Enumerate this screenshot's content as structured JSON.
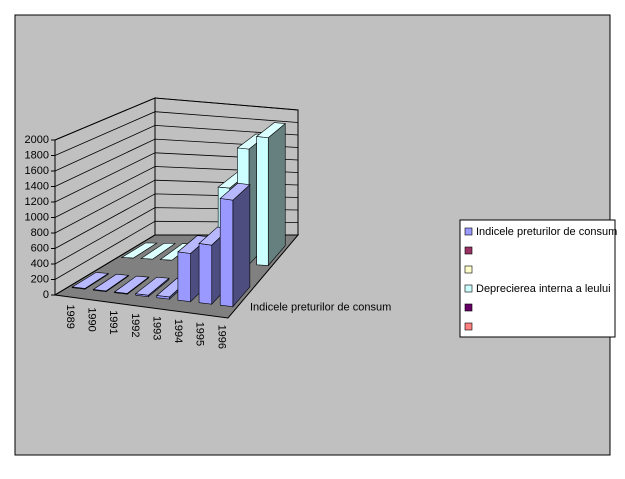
{
  "chart_data": {
    "type": "bar3d",
    "categories": [
      "1989",
      "1990",
      "1991",
      "1992",
      "1993",
      "1994",
      "1995",
      "1996"
    ],
    "series": [
      {
        "name": "Indicele preturilor de consum",
        "color": "#9999ff",
        "values": [
          10,
          10,
          10,
          20,
          30,
          650,
          800,
          1450
        ]
      },
      {
        "name": null,
        "color": "#993366",
        "values": [
          null,
          null,
          null,
          null,
          null,
          null,
          null,
          null
        ]
      },
      {
        "name": null,
        "color": "#ffffcc",
        "values": [
          null,
          null,
          null,
          null,
          null,
          null,
          null,
          null
        ]
      },
      {
        "name": "Deprecierea interna a leului",
        "color": "#ccffff",
        "values": [
          0,
          0,
          0,
          0,
          0,
          1100,
          1700,
          1900
        ]
      },
      {
        "name": null,
        "color": "#660066",
        "values": [
          null,
          null,
          null,
          null,
          null,
          null,
          null,
          null
        ]
      },
      {
        "name": null,
        "color": "#ff8080",
        "values": [
          null,
          null,
          null,
          null,
          null,
          null,
          null,
          null
        ]
      }
    ],
    "ylim": [
      0,
      2000
    ],
    "yticks": [
      0,
      200,
      400,
      600,
      800,
      1000,
      1200,
      1400,
      1600,
      1800,
      2000
    ],
    "grid": true,
    "legend": "right"
  }
}
